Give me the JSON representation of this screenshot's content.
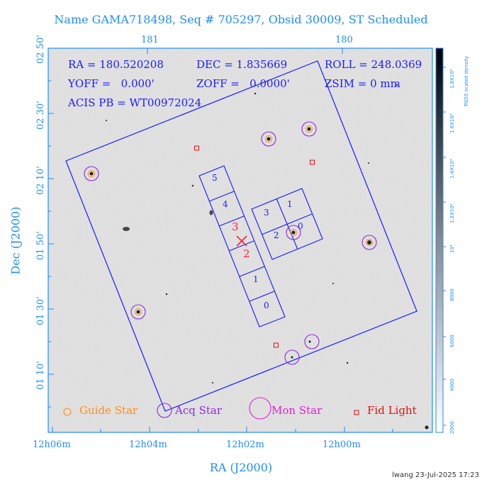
{
  "title": "Name GAMA718498, Seq # 705297, Obsid 30009, ST Scheduled",
  "info": {
    "ra": "RA = 180.520208",
    "dec": "DEC = 1.835669",
    "roll": "ROLL = 248.0369",
    "yoff": "YOFF =   0.000'",
    "zoff": "ZOFF =   0.0000'",
    "zsim": "ZSIM = 0 mm",
    "acis_pb": "ACIS PB = WT00972024"
  },
  "axes": {
    "xlabel": "RA (J2000)",
    "ylabel": "Dec (J2000)",
    "bottom_ticks": [
      "12h06m",
      "12h04m",
      "12h02m",
      "12h00m"
    ],
    "top_ticks": [
      "181",
      "180"
    ],
    "left_ticks": [
      "02 50'",
      "02 30'",
      "02 10'",
      "01 50'",
      "01 30'",
      "01 10'"
    ]
  },
  "colorbar": {
    "label": "PGSS scaled density",
    "ticks": [
      "2000",
      "4000",
      "6000",
      "8000",
      "10⁴",
      "1.2X10⁴",
      "1.4X10⁴",
      "1.6X10⁴",
      "1.8X10⁴"
    ]
  },
  "chips": {
    "ccd_labels": [
      "5",
      "4",
      "3",
      "2",
      "1",
      "0"
    ],
    "aimpoint_labels": [
      "3",
      "2"
    ],
    "cluster_labels": [
      "3",
      "1",
      "2",
      "0"
    ]
  },
  "legend": {
    "guide_star": "Guide Star",
    "acq_star": "Acq Star",
    "mon_star": "Mon Star",
    "fid_light": "Fid Light"
  },
  "colors": {
    "axis": "#1e8cff",
    "info_text": "#1a1aff",
    "field_box": "#1a1aff",
    "guide_star": "#ff8c1a",
    "acq_star": "#8a2be2",
    "mon_star": "#e020d0",
    "fid_light": "#e01010",
    "aimpoint": "#ff2040"
  },
  "footer": "lwang 23-Jul-2025 17:23"
}
